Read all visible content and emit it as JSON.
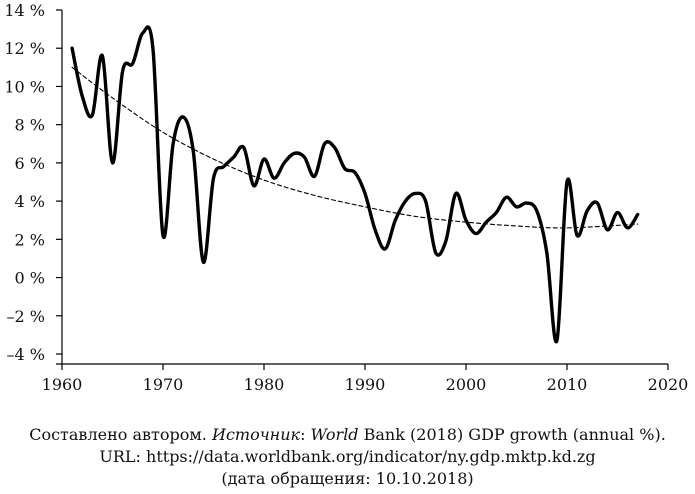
{
  "chart_data": {
    "type": "line",
    "title": "",
    "xlabel": "",
    "ylabel": "",
    "xlim": [
      1960,
      2020
    ],
    "ylim": [
      -4,
      14
    ],
    "grid": false,
    "x_ticks": [
      1960,
      1970,
      1980,
      1990,
      2000,
      2010,
      2020
    ],
    "x_tick_labels": [
      "1960",
      "1970",
      "1980",
      "1990",
      "2000",
      "2010",
      "2020"
    ],
    "y_ticks": [
      14,
      12,
      10,
      8,
      6,
      4,
      2,
      0,
      -2,
      -4
    ],
    "y_tick_labels": [
      "14 %",
      "12 %",
      "10 %",
      "8 %",
      "6 %",
      "4 %",
      "2 %",
      "0 %",
      "–2 %",
      "–4 %"
    ],
    "series": [
      {
        "style": "solid",
        "color": "#000000",
        "x": [
          1961,
          1962,
          1963,
          1964,
          1965,
          1966,
          1967,
          1968,
          1969,
          1970,
          1971,
          1972,
          1973,
          1974,
          1975,
          1976,
          1977,
          1978,
          1979,
          1980,
          1981,
          1982,
          1983,
          1984,
          1985,
          1986,
          1987,
          1988,
          1989,
          1990,
          1991,
          1992,
          1993,
          1994,
          1995,
          1996,
          1997,
          1998,
          1999,
          2000,
          2001,
          2002,
          2003,
          2004,
          2005,
          2006,
          2007,
          2008,
          2009,
          2010,
          2011,
          2012,
          2013,
          2014,
          2015,
          2016,
          2017
        ],
        "values": [
          12.0,
          9.5,
          8.5,
          11.6,
          6.0,
          10.8,
          11.2,
          12.8,
          12.0,
          2.2,
          7.0,
          8.4,
          6.6,
          0.8,
          5.2,
          5.8,
          6.3,
          6.8,
          4.8,
          6.2,
          5.2,
          6.0,
          6.5,
          6.3,
          5.3,
          7.0,
          6.8,
          5.7,
          5.5,
          4.4,
          2.5,
          1.5,
          3.0,
          4.0,
          4.4,
          4.0,
          1.3,
          1.9,
          4.4,
          3.0,
          2.3,
          2.9,
          3.4,
          4.2,
          3.7,
          3.9,
          3.5,
          1.3,
          -3.3,
          5.0,
          2.2,
          3.5,
          3.9,
          2.5,
          3.4,
          2.6,
          3.3
        ]
      },
      {
        "style": "dashed",
        "color": "#000000",
        "x": [
          1961,
          1965,
          1970,
          1975,
          1980,
          1985,
          1990,
          1995,
          2000,
          2005,
          2010,
          2017
        ],
        "values": [
          11.0,
          9.4,
          7.6,
          6.2,
          5.1,
          4.3,
          3.7,
          3.2,
          2.9,
          2.7,
          2.6,
          2.8
        ]
      }
    ]
  },
  "caption": {
    "line1_part1": "Составлено автором. ",
    "line1_italic1": "Источник",
    "line1_part2": ": ",
    "line1_italic2": "World",
    "line1_part3": " Bank (2018) GDP growth (annual %).",
    "line2": "URL: https://data.worldbank.org/indicator/ny.gdp.mktp.kd.zg",
    "line3": "(дата обращения: 10.10.2018)"
  }
}
